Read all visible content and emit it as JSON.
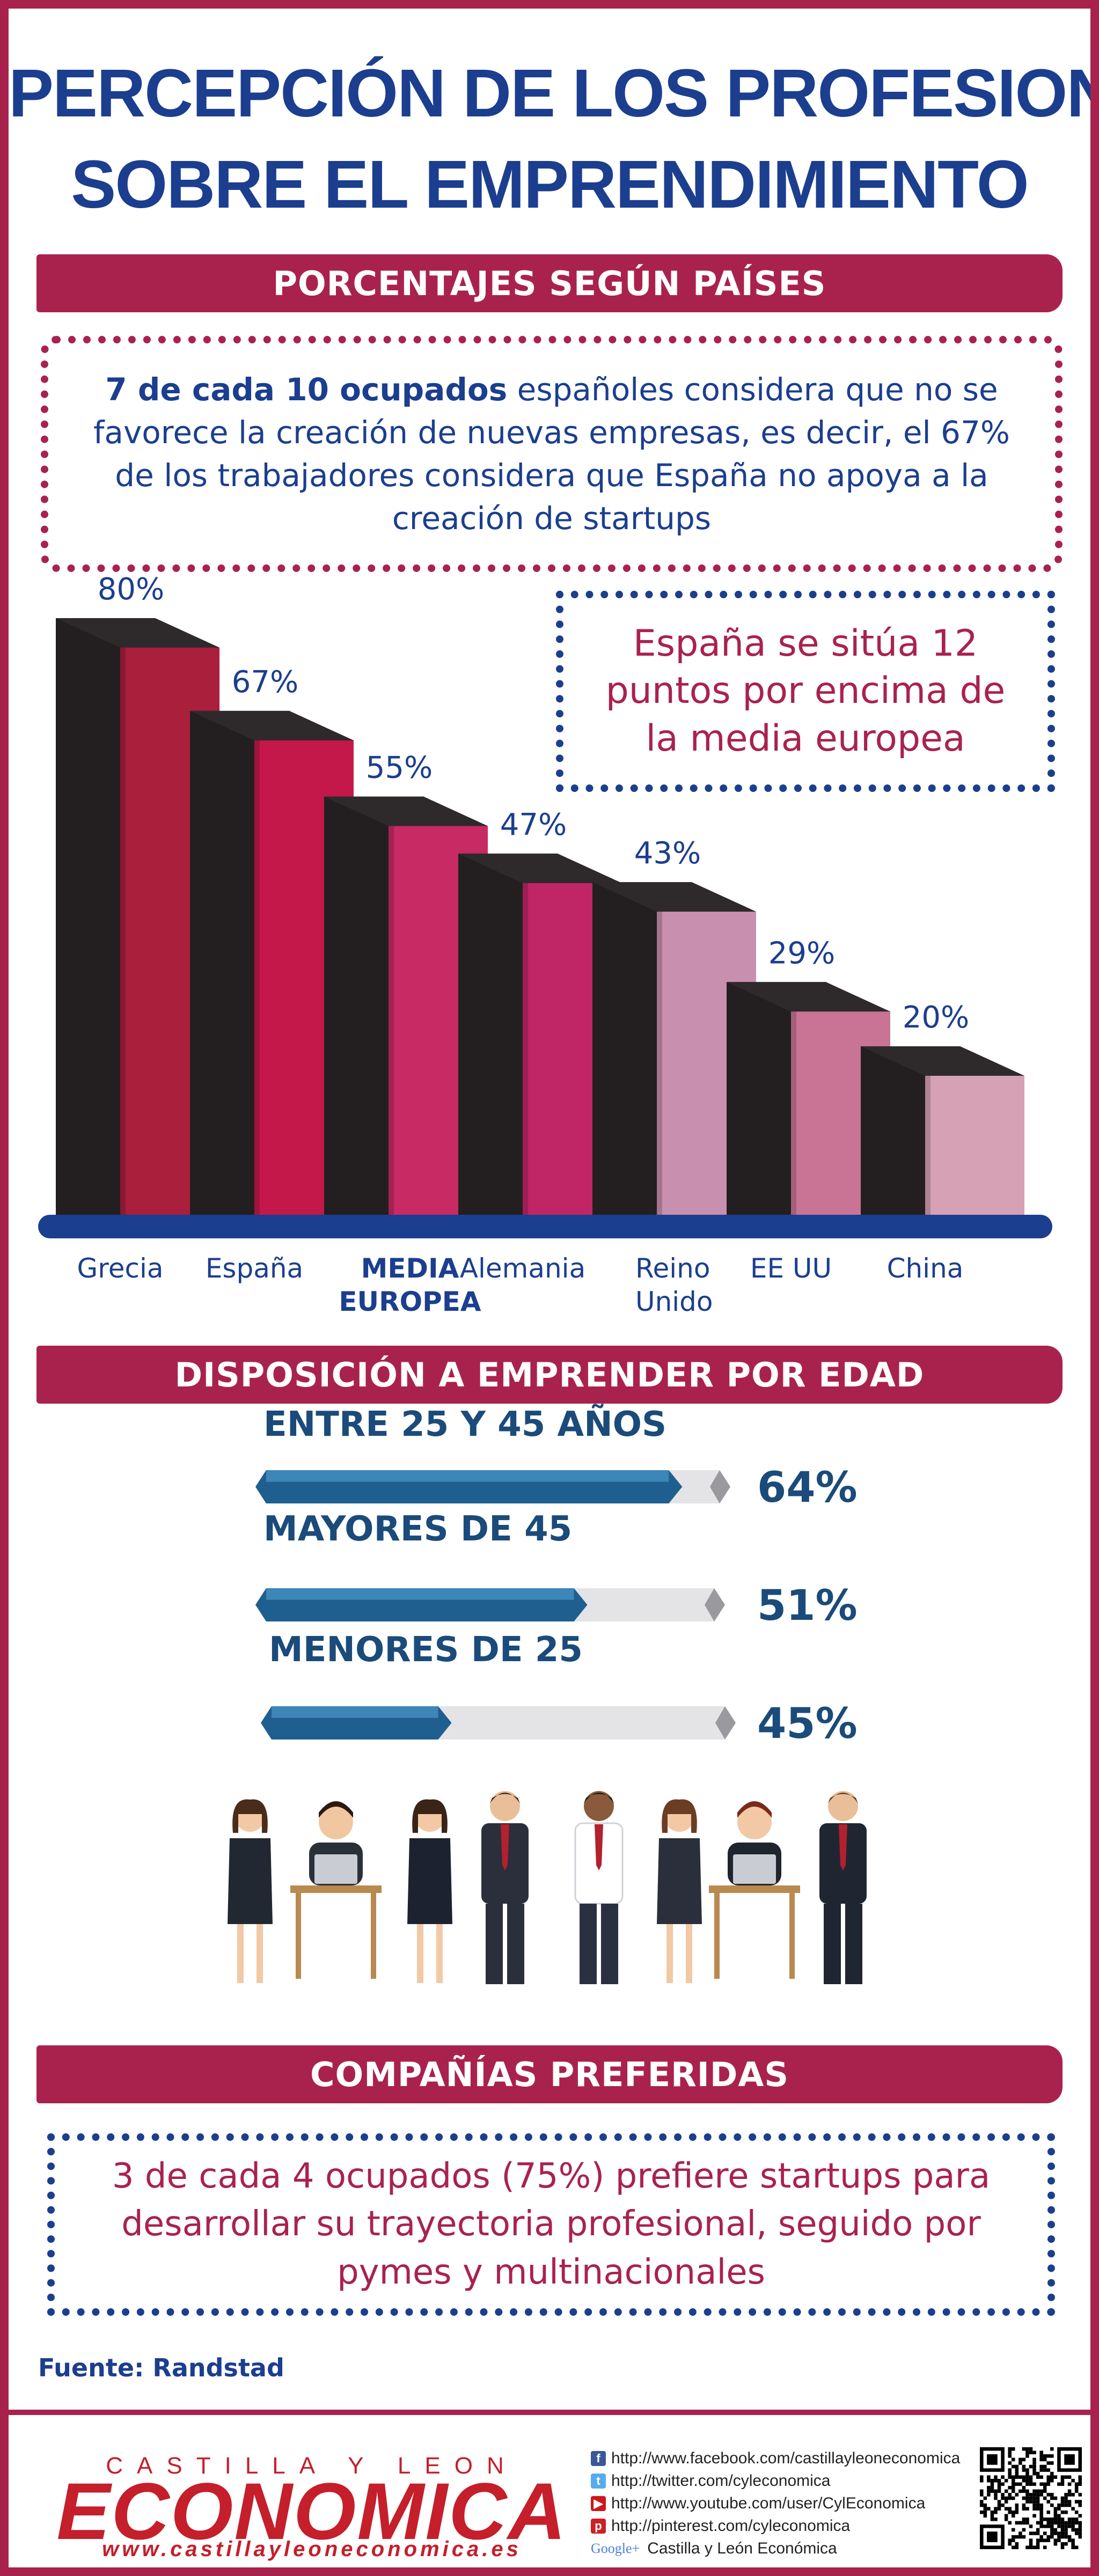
{
  "title": {
    "line1": "PERCEPCIÓN DE LOS PROFESIONALES",
    "line2": "SOBRE EL EMPRENDIMIENTO"
  },
  "section1": {
    "banner": "PORCENTAJES  SEGÚN PAÍSES",
    "intro_bold": "7 de cada 10 ocupados",
    "intro_rest": " españoles considera que no se favorece la creación de nuevas empresas, es decir, el 67% de los trabajadores considera que España no apoya a la creación de startups",
    "callout": "España se sitúa 12 puntos por encima de la media europea"
  },
  "chart_data": [
    {
      "type": "bar",
      "categories": [
        "Grecia",
        "España",
        "MEDIA EUROPEA",
        "Alemania",
        "Reino Unido",
        "EE UU",
        "China"
      ],
      "category_lines": [
        [
          "Grecia"
        ],
        [
          "España"
        ],
        [
          "MEDIA",
          "EUROPEA"
        ],
        [
          "Alemania"
        ],
        [
          "Reino",
          "Unido"
        ],
        [
          "EE UU"
        ],
        [
          "China"
        ]
      ],
      "values": [
        80,
        67,
        55,
        47,
        43,
        29,
        20
      ],
      "value_labels": [
        "80%",
        "67%",
        "55%",
        "47%",
        "43%",
        "29%",
        "20%"
      ],
      "colors": [
        "#a91f3c",
        "#c4184a",
        "#c82a63",
        "#c02566",
        "#c98fae",
        "#c97495",
        "#d6a0b5"
      ],
      "highlight": "MEDIA EUROPEA",
      "ylim": [
        0,
        100
      ]
    },
    {
      "type": "bar",
      "orientation": "horizontal",
      "categories": [
        "ENTRE 25 Y 45 AÑOS",
        "MAYORES DE 45",
        "MENORES DE 25"
      ],
      "values": [
        64,
        51,
        45
      ],
      "value_labels": [
        "64%",
        "51%",
        "45%"
      ],
      "xlim": [
        0,
        100
      ]
    }
  ],
  "section2": {
    "banner": "DISPOSICIÓN A EMPRENDER POR EDAD"
  },
  "section3": {
    "banner": "COMPAÑÍAS PREFERIDAS",
    "text": "3 de cada 4 ocupados (75%) prefiere startups para desarrollar su trayectoria profesional, seguido por pymes y multinacionales"
  },
  "source": "Fuente:  Randstad",
  "footer": {
    "logo_top": "CASTILLA Y LEON",
    "logo_main": "ECONOMICA",
    "logo_url": "www.castillayleoneconomica.es",
    "links": [
      {
        "icon": "facebook-icon",
        "color": "#3b5998",
        "glyph": "f",
        "text": "http://www.facebook.com/castillayleoneconomica"
      },
      {
        "icon": "twitter-icon",
        "color": "#55acee",
        "glyph": "t",
        "text": "http://twitter.com/cyleconomica"
      },
      {
        "icon": "youtube-icon",
        "color": "#cc181e",
        "glyph": "▶",
        "text": "http://www.youtube.com/user/CylEconomica"
      },
      {
        "icon": "pinterest-icon",
        "color": "#cb2027",
        "glyph": "p",
        "text": "http://pinterest.com/cyleconomica"
      },
      {
        "icon": "google-plus-icon",
        "color": "#ffffff",
        "glyph": "",
        "text": "Castilla y León Económica"
      }
    ],
    "google_label": "Google+"
  }
}
